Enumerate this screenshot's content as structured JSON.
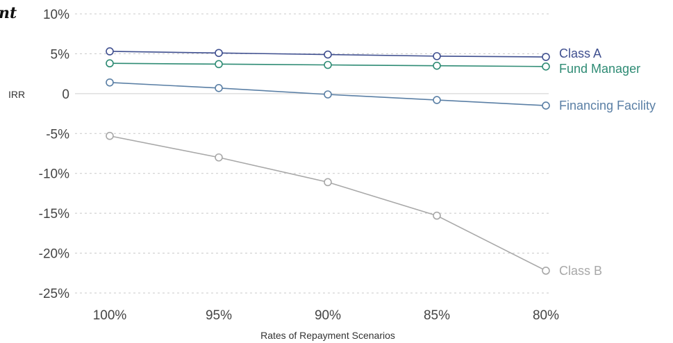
{
  "corner_fragment": "nt",
  "chart_data": {
    "type": "line",
    "title": "",
    "xlabel": "Rates of Repayment Scenarios",
    "ylabel": "IRR",
    "categories": [
      "100%",
      "95%",
      "90%",
      "85%",
      "80%"
    ],
    "ylim": [
      -25,
      10
    ],
    "yticks": [
      10,
      5,
      0,
      -5,
      -10,
      -15,
      -20,
      -25
    ],
    "ytick_labels": [
      "10%",
      "5%",
      "0",
      "-5%",
      "-10%",
      "-15%",
      "-20%",
      "-25%"
    ],
    "grid": "horizontal dashed",
    "legend": "inline labels at line ends (right)",
    "series": [
      {
        "name": "Class A",
        "color": "#3f4f8f",
        "values": [
          5.3,
          5.1,
          4.9,
          4.7,
          4.6
        ]
      },
      {
        "name": "Fund Manager",
        "color": "#2e8b74",
        "values": [
          3.8,
          3.7,
          3.6,
          3.5,
          3.4
        ]
      },
      {
        "name": "Financing Facility",
        "color": "#5a7fa5",
        "values": [
          1.4,
          0.7,
          -0.1,
          -0.8,
          -1.5
        ]
      },
      {
        "name": "Class B",
        "color": "#a8a8a8",
        "values": [
          -5.3,
          -8.0,
          -11.1,
          -15.3,
          -22.2
        ]
      }
    ]
  }
}
